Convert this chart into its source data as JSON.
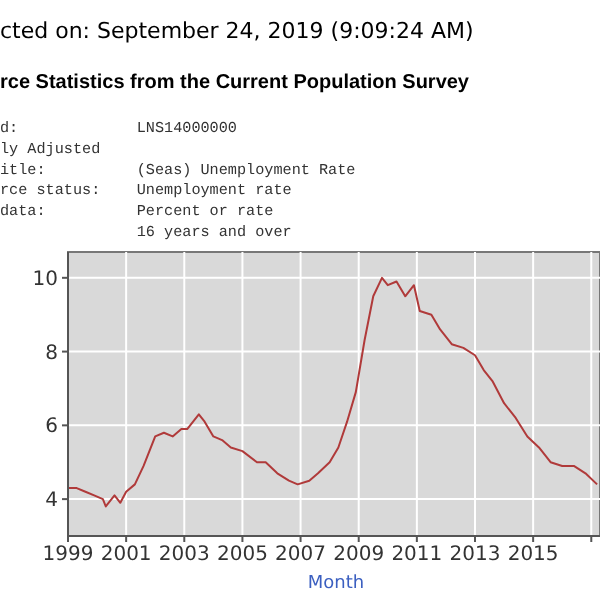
{
  "chart_data": {
    "type": "line",
    "title": "cted on: September 24, 2019 (9:09:24 AM)",
    "subtitle": "rce Statistics from the Current Population Survey",
    "xlabel": "Month",
    "annotations": [
      "d:             LNS14000000",
      "ly Adjusted",
      "itle:          (Seas) Unemployment Rate",
      "rce status:    Unemployment rate",
      "data:          Percent or rate",
      "               16 years and over"
    ],
    "x": [
      1999.0,
      1999.3,
      1999.6,
      1999.9,
      2000.2,
      2000.3,
      2000.6,
      2000.8,
      2001.0,
      2001.3,
      2001.6,
      2001.8,
      2002.0,
      2002.3,
      2002.6,
      2002.9,
      2003.1,
      2003.5,
      2003.7,
      2004.0,
      2004.3,
      2004.6,
      2005.0,
      2005.5,
      2005.8,
      2006.2,
      2006.6,
      2006.9,
      2007.3,
      2007.6,
      2008.0,
      2008.3,
      2008.6,
      2008.9,
      2009.2,
      2009.5,
      2009.8,
      2010.0,
      2010.3,
      2010.6,
      2010.9,
      2011.1,
      2011.5,
      2011.8,
      2012.2,
      2012.6,
      2013.0,
      2013.3,
      2013.6,
      2014.0,
      2014.4,
      2014.8,
      2015.2,
      2015.6,
      2016.0,
      2016.4,
      2016.8,
      2017.2
    ],
    "series": [
      {
        "color": "#b03a3a",
        "values": [
          4.3,
          4.3,
          4.2,
          4.1,
          4.0,
          3.8,
          4.1,
          3.9,
          4.2,
          4.4,
          4.9,
          5.3,
          5.7,
          5.8,
          5.7,
          5.9,
          5.9,
          6.3,
          6.1,
          5.7,
          5.6,
          5.4,
          5.3,
          5.0,
          5.0,
          4.7,
          4.5,
          4.4,
          4.5,
          4.7,
          5.0,
          5.4,
          6.1,
          6.9,
          8.3,
          9.5,
          10.0,
          9.8,
          9.9,
          9.5,
          9.8,
          9.1,
          9.0,
          8.6,
          8.2,
          8.1,
          7.9,
          7.5,
          7.2,
          6.6,
          6.2,
          5.7,
          5.4,
          5.0,
          4.9,
          4.9,
          4.7,
          4.4
        ]
      }
    ],
    "xlim": [
      1999,
      2017.3
    ],
    "xticks": [
      1999,
      2001,
      2003,
      2005,
      2007,
      2009,
      2011,
      2013,
      2015,
      {
        "value": 2017,
        "label": null
      }
    ],
    "ylim": [
      3,
      10.7
    ],
    "yticks": [
      4,
      6,
      8,
      10
    ],
    "grid": true
  }
}
